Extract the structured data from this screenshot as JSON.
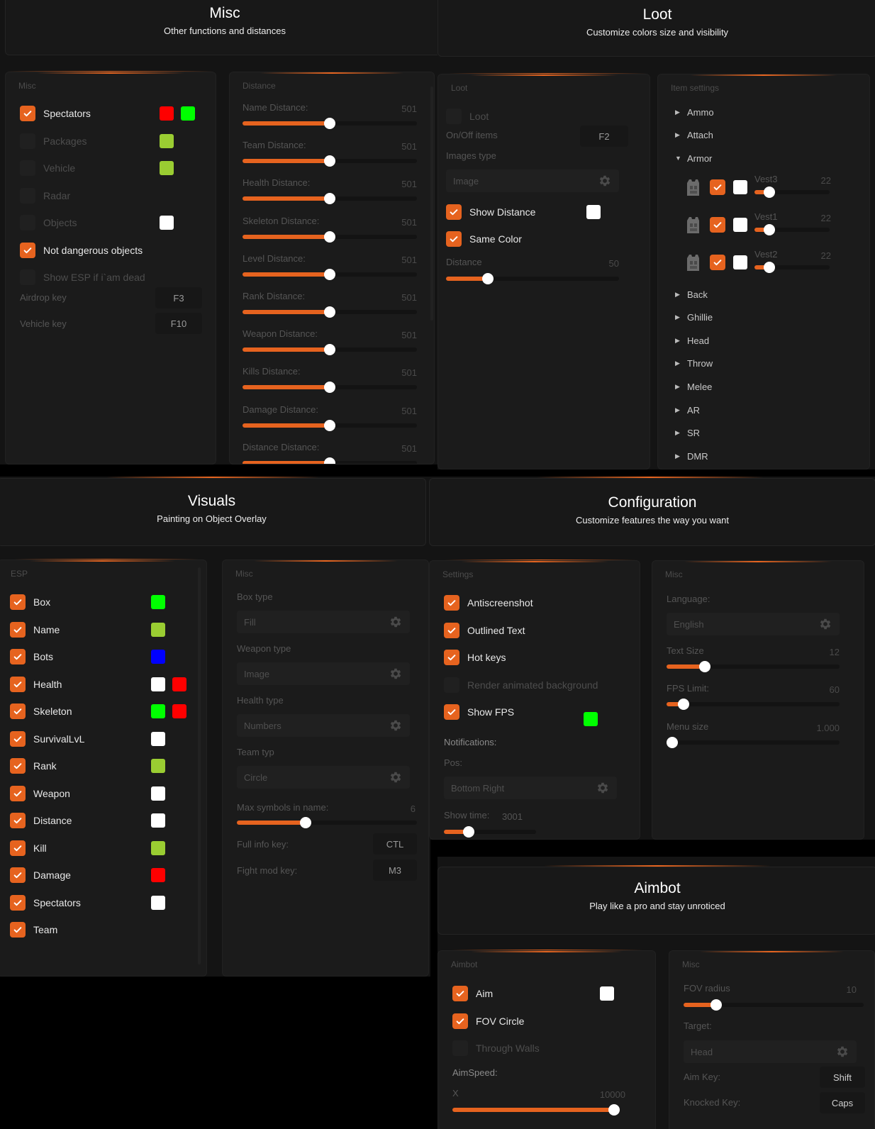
{
  "misc_section": {
    "title": "Misc",
    "subtitle": "Other functions and distances",
    "misc_panel": {
      "title": "Misc",
      "items": [
        {
          "label": "Spectators",
          "checked": true,
          "colors": [
            "#ff0000",
            "#00ff00"
          ]
        },
        {
          "label": "Packages",
          "checked": false,
          "colors": [
            "#9acd32"
          ]
        },
        {
          "label": "Vehicle",
          "checked": false,
          "colors": [
            "#9acd32"
          ]
        },
        {
          "label": "Radar",
          "checked": false,
          "colors": []
        },
        {
          "label": "Objects",
          "checked": false,
          "colors": [
            "#ffffff"
          ]
        },
        {
          "label": "Not dangerous objects",
          "checked": true,
          "colors": []
        },
        {
          "label": "Show ESP if i`am dead",
          "checked": false,
          "colors": []
        }
      ],
      "keys": [
        {
          "label": "Airdrop key",
          "value": "F3"
        },
        {
          "label": "Vehicle key",
          "value": "F10"
        }
      ]
    },
    "distance_panel": {
      "title": "Distance",
      "sliders": [
        {
          "label": "Name Distance:",
          "value": "501",
          "fraction": 0.5
        },
        {
          "label": "Team Distance:",
          "value": "501",
          "fraction": 0.5
        },
        {
          "label": "Health Distance:",
          "value": "501",
          "fraction": 0.5
        },
        {
          "label": "Skeleton Distance:",
          "value": "501",
          "fraction": 0.5
        },
        {
          "label": "Level Distance:",
          "value": "501",
          "fraction": 0.5
        },
        {
          "label": "Rank Distance:",
          "value": "501",
          "fraction": 0.5
        },
        {
          "label": "Weapon Distance:",
          "value": "501",
          "fraction": 0.5
        },
        {
          "label": "Kills Distance:",
          "value": "501",
          "fraction": 0.5
        },
        {
          "label": "Damage Distance:",
          "value": "501",
          "fraction": 0.5
        },
        {
          "label": "Distance Distance:",
          "value": "501",
          "fraction": 0.5
        }
      ]
    }
  },
  "loot_section": {
    "title": "Loot",
    "subtitle": "Customize colors size and visibility",
    "loot_panel": {
      "title": "Loot",
      "loot_label": "Loot",
      "loot_checked": false,
      "onoff_label": "On/Off items",
      "onoff_key": "F2",
      "images_type_label": "Images type",
      "images_type_value": "Image",
      "show_distance_label": "Show Distance",
      "same_color_label": "Same Color",
      "distance_label": "Distance",
      "distance_value": "50",
      "distance_fraction": 0.24
    },
    "item_panel": {
      "title": "Item settings",
      "top_items": [
        "Ammo",
        "Attach",
        "Armor"
      ],
      "armor_children": [
        {
          "name": "Vest3",
          "value": "22",
          "fraction": 0.2
        },
        {
          "name": "Vest1",
          "value": "22",
          "fraction": 0.2
        },
        {
          "name": "Vest2",
          "value": "22",
          "fraction": 0.2
        }
      ],
      "bottom_items": [
        "Back",
        "Ghillie",
        "Head",
        "Throw",
        "Melee",
        "AR",
        "SR",
        "DMR"
      ]
    }
  },
  "visuals_section": {
    "title": "Visuals",
    "subtitle": "Painting on Object Overlay",
    "esp_panel": {
      "title": "ESP",
      "items": [
        {
          "label": "Box",
          "colors": [
            "#00ff00"
          ]
        },
        {
          "label": "Name",
          "colors": [
            "#9acd32"
          ]
        },
        {
          "label": "Bots",
          "colors": [
            "#0000ff"
          ]
        },
        {
          "label": "Health",
          "colors": [
            "#ffffff",
            "#ff0000"
          ]
        },
        {
          "label": "Skeleton",
          "colors": [
            "#00ff00",
            "#ff0000"
          ]
        },
        {
          "label": "SurvivalLvL",
          "colors": [
            "#ffffff"
          ]
        },
        {
          "label": "Rank",
          "colors": [
            "#9acd32"
          ]
        },
        {
          "label": "Weapon",
          "colors": [
            "#ffffff"
          ]
        },
        {
          "label": "Distance",
          "colors": [
            "#ffffff"
          ]
        },
        {
          "label": "Kill",
          "colors": [
            "#9acd32"
          ]
        },
        {
          "label": "Damage",
          "colors": [
            "#ff0000"
          ]
        },
        {
          "label": "Spectators",
          "colors": [
            "#ffffff"
          ]
        },
        {
          "label": "Team",
          "colors": []
        }
      ]
    },
    "misc_panel": {
      "title": "Misc",
      "selects": [
        {
          "label": "Box type",
          "value": "Fill"
        },
        {
          "label": "Weapon type",
          "value": "Image"
        },
        {
          "label": "Health type",
          "value": "Numbers"
        },
        {
          "label": "Team typ",
          "value": "Circle"
        }
      ],
      "max_symbols_label": "Max symbols in name:",
      "max_symbols_value": "6",
      "max_symbols_fraction": 0.38,
      "keys": [
        {
          "label": "Full info key:",
          "value": "CTL"
        },
        {
          "label": "Fight mod key:",
          "value": "M3"
        }
      ]
    }
  },
  "config_section": {
    "title": "Configuration",
    "subtitle": "Customize features the way you want",
    "settings_panel": {
      "title": "Settings",
      "items": [
        {
          "label": "Antiscreenshot",
          "checked": true
        },
        {
          "label": "Outlined Text",
          "checked": true
        },
        {
          "label": "Hot keys",
          "checked": true
        },
        {
          "label": "Render animated background",
          "checked": false
        },
        {
          "label": "Show FPS",
          "checked": true
        }
      ],
      "fps_color": "#00ff00",
      "notifications_label": "Notifications:",
      "pos_label": "Pos:",
      "pos_value": "Bottom Right",
      "show_time_label": "Show time:",
      "show_time_value": "3001",
      "show_time_fraction": 0.27
    },
    "misc_panel": {
      "title": "Misc",
      "language_label": "Language:",
      "language_value": "English",
      "sliders": [
        {
          "label": "Text Size",
          "value": "12",
          "fraction": 0.22
        },
        {
          "label": "FPS Limit:",
          "value": "60",
          "fraction": 0.1
        },
        {
          "label": "Menu size",
          "value": "1.000",
          "fraction": 0
        }
      ]
    }
  },
  "aimbot_section": {
    "title": "Aimbot",
    "subtitle": "Play like a pro and stay unroticed",
    "aimbot_panel": {
      "title": "Aimbot",
      "items": [
        {
          "label": "Aim",
          "checked": true
        },
        {
          "label": "FOV Circle",
          "checked": true
        },
        {
          "label": "Through Walls",
          "checked": false
        }
      ],
      "aim_color": "#ffffff",
      "aimspeed_label": "AimSpeed:",
      "x_label": "X",
      "x_value": "10000",
      "x_fraction": 1
    },
    "misc_panel": {
      "title": "Misc",
      "fov_label": "FOV radius",
      "fov_value": "10",
      "fov_fraction": 0.18,
      "target_label": "Target:",
      "target_value": "Head",
      "keys": [
        {
          "label": "Aim Key:",
          "value": "Shift"
        },
        {
          "label": "Knocked Key:",
          "value": "Caps"
        }
      ]
    }
  }
}
